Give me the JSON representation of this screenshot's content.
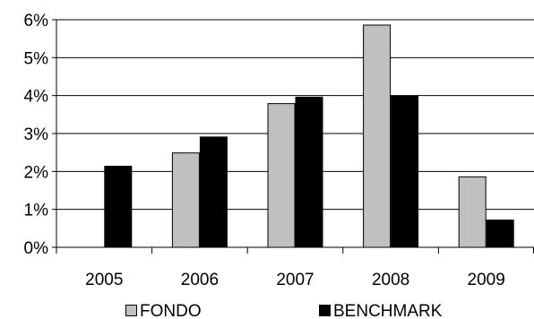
{
  "chart_data": {
    "type": "bar",
    "title": "",
    "xlabel": "",
    "ylabel": "",
    "categories": [
      "2005",
      "2006",
      "2007",
      "2008",
      "2009"
    ],
    "series": [
      {
        "name": "FONDO",
        "values": [
          null,
          2.5,
          3.8,
          5.87,
          1.87
        ],
        "color": "#c0c0c0"
      },
      {
        "name": "BENCHMARK",
        "values": [
          2.15,
          2.92,
          3.97,
          4.0,
          0.73
        ],
        "color": "#000000"
      }
    ],
    "ylim": [
      0,
      6
    ],
    "yticks": [
      "0%",
      "1%",
      "2%",
      "3%",
      "4%",
      "5%",
      "6%"
    ],
    "grid": true,
    "legend_position": "bottom"
  }
}
